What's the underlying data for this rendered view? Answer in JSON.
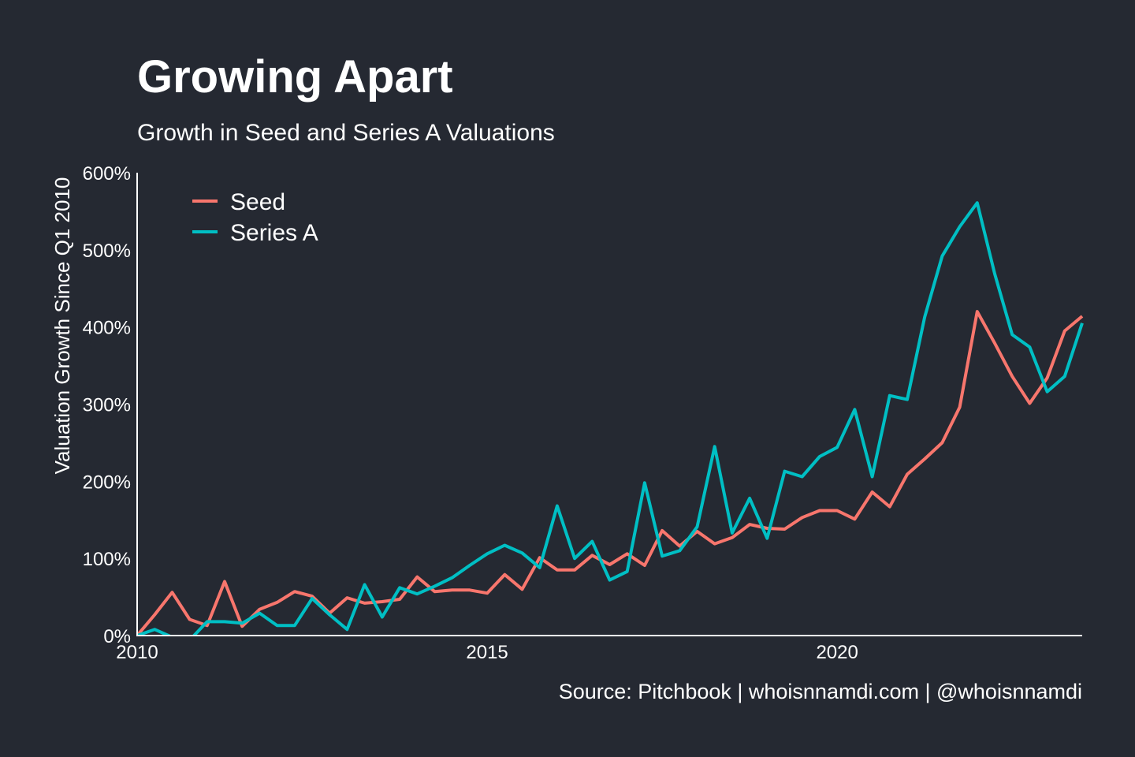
{
  "chart_data": {
    "type": "line",
    "title": "Growing Apart",
    "subtitle": "Growth in Seed and Series A Valuations",
    "xlabel": "",
    "ylabel": "Valuation Growth Since Q1 2010",
    "caption": "Source: Pitchbook | whoisnnamdi.com | @whoisnnamdi",
    "xlim": [
      2010,
      2023.5
    ],
    "ylim": [
      0,
      600
    ],
    "x_ticks": [
      2010,
      2015,
      2020
    ],
    "x_tick_labels": [
      "2010",
      "2015",
      "2020"
    ],
    "y_ticks": [
      0,
      100,
      200,
      300,
      400,
      500,
      600
    ],
    "y_tick_labels": [
      "0%",
      "100%",
      "200%",
      "300%",
      "400%",
      "500%",
      "600%"
    ],
    "grid": false,
    "legend_position": "top-left",
    "x": [
      2010,
      2010.25,
      2010.5,
      2010.75,
      2011,
      2011.25,
      2011.5,
      2011.75,
      2012,
      2012.25,
      2012.5,
      2012.75,
      2013,
      2013.25,
      2013.5,
      2013.75,
      2014,
      2014.25,
      2014.5,
      2014.75,
      2015,
      2015.25,
      2015.5,
      2015.75,
      2016,
      2016.25,
      2016.5,
      2016.75,
      2017,
      2017.25,
      2017.5,
      2017.75,
      2018,
      2018.25,
      2018.5,
      2018.75,
      2019,
      2019.25,
      2019.5,
      2019.75,
      2020,
      2020.25,
      2020.5,
      2020.75,
      2021,
      2021.25,
      2021.5,
      2021.75,
      2022,
      2022.25,
      2022.5,
      2022.75,
      2023,
      2023.25,
      2023.5
    ],
    "series": [
      {
        "name": "Seed",
        "color": "#F8766D",
        "values": [
          0,
          27,
          56,
          21,
          13,
          70,
          12,
          34,
          43,
          57,
          51,
          29,
          49,
          42,
          44,
          47,
          76,
          57,
          59,
          59,
          55,
          79,
          60,
          101,
          85,
          85,
          104,
          92,
          106,
          91,
          136,
          116,
          135,
          119,
          127,
          144,
          139,
          138,
          153,
          162,
          162,
          151,
          186,
          167,
          209,
          229,
          250,
          296,
          420,
          379,
          336,
          301,
          334,
          395,
          414
        ]
      },
      {
        "name": "Series A",
        "color": "#00BFC4",
        "values": [
          0,
          8,
          -2,
          -6,
          18,
          18,
          16,
          29,
          13,
          13,
          48,
          27,
          8,
          66,
          24,
          62,
          54,
          64,
          75,
          91,
          106,
          117,
          107,
          88,
          168,
          100,
          122,
          72,
          83,
          198,
          103,
          110,
          141,
          245,
          133,
          178,
          126,
          213,
          206,
          232,
          244,
          293,
          206,
          311,
          306,
          413,
          492,
          530,
          561,
          469,
          390,
          374,
          316,
          336,
          405
        ]
      }
    ]
  },
  "colors": {
    "background": "#252932",
    "text": "#ffffff"
  }
}
